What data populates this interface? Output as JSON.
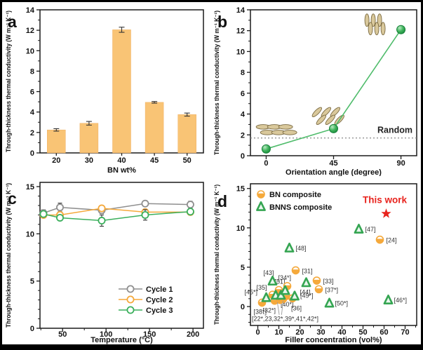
{
  "figure": {
    "background": "#ffffff",
    "border_color": "#000000",
    "axis_color": "#1a1a1a",
    "text_color": "#111111"
  },
  "chart_data": [
    {
      "id": "a",
      "panel_label": "a",
      "type": "bar",
      "xlabel": "BN wt%",
      "ylabel": "Through-thickness thermal conductivity (W m⁻¹ K⁻¹)",
      "categories": [
        "20",
        "30",
        "40",
        "45",
        "50"
      ],
      "values": [
        2.25,
        2.9,
        12.05,
        4.95,
        3.75
      ],
      "errors": [
        0.12,
        0.18,
        0.25,
        0.08,
        0.15
      ],
      "ylim": [
        0,
        14
      ],
      "yticks": [
        0,
        2,
        4,
        6,
        8,
        10,
        12,
        14
      ],
      "y_minor_step": 1,
      "bar_color": "#F9C475",
      "bar_edge": "#EFAF62",
      "error_color": "#333333"
    },
    {
      "id": "b",
      "panel_label": "b",
      "type": "line",
      "xlabel": "Orientation angle (degree)",
      "ylabel": "Through-thickness thermal conductivity (W m⁻¹ K⁻¹)",
      "x": [
        0,
        45,
        90
      ],
      "y": [
        0.65,
        2.6,
        12.1
      ],
      "errors": [
        0.12,
        0.2,
        0.3
      ],
      "xlim": [
        -10.5,
        100.5
      ],
      "xticks": [
        0,
        45,
        90
      ],
      "ylim": [
        0,
        14
      ],
      "yticks": [
        0,
        2,
        4,
        6,
        8,
        10,
        12,
        14
      ],
      "y_minor_step": 1,
      "line_color": "#4FBC6B",
      "marker_edge": "#17803A",
      "ref_line": {
        "y": 1.7,
        "label": "Random",
        "color": "#888888",
        "label_color": "#222222"
      },
      "platelets": [
        {
          "x": 5.5,
          "y": 2.5,
          "angle": 0
        },
        {
          "x": 40,
          "y": 3.85,
          "angle": 45
        },
        {
          "x": 71.5,
          "y": 12.6,
          "angle": 90
        }
      ],
      "platelet_fill": "#D9C89B",
      "platelet_stroke": "#7A6A42"
    },
    {
      "id": "c",
      "panel_label": "c",
      "type": "multiline",
      "xlabel": "Temperature (°C)",
      "ylabel": "Through-thickness thermal conductivity (W m⁻¹ K⁻¹)",
      "x": [
        28,
        47,
        95,
        145,
        197
      ],
      "series": [
        {
          "name": "Cycle 1",
          "color": "#8F8F8F",
          "values": [
            12.2,
            12.8,
            12.5,
            13.2,
            13.1
          ],
          "errors": [
            0.35,
            0.45,
            0.35,
            0.3,
            0.35
          ]
        },
        {
          "name": "Cycle 2",
          "color": "#F5A93B",
          "values": [
            12.0,
            12.0,
            12.7,
            12.3,
            12.3
          ],
          "errors": [
            0.25,
            0.2,
            0.2,
            0.3,
            0.25
          ]
        },
        {
          "name": "Cycle 3",
          "color": "#3BAF5C",
          "values": [
            12.1,
            11.7,
            11.4,
            12.0,
            12.35
          ],
          "errors": [
            0.3,
            0.3,
            0.6,
            0.55,
            0.3
          ]
        }
      ],
      "xlim": [
        24,
        212
      ],
      "xticks": [
        50,
        100,
        150,
        200
      ],
      "x_minor_step": 25,
      "ylim": [
        0,
        15.45
      ],
      "yticks": [
        0,
        5,
        10,
        15
      ],
      "y_minor_step": 1,
      "error_color": "#333333",
      "legend_labels": [
        "Cycle 1",
        "Cycle 2",
        "Cycle 3"
      ]
    },
    {
      "id": "d",
      "panel_label": "d",
      "type": "scatter",
      "xlabel": "Filler concentration (vol%)",
      "ylabel": "Through-thickness thermal conductivity (W m⁻¹ K⁻¹)",
      "xlim": [
        -3.5,
        75.5
      ],
      "xticks": [
        0,
        10,
        20,
        30,
        40,
        50,
        60,
        70
      ],
      "x_minor_step": 5,
      "ylim": [
        -2.4,
        15.6
      ],
      "yticks": [
        0,
        5,
        10,
        15
      ],
      "y_minor_step": 1,
      "ref_label_color": "#333333",
      "series": [
        {
          "name": "BN composite",
          "marker": "halfcircle",
          "color": "#F5A93B",
          "points": [
            {
              "x": 2,
              "y": 0.5,
              "ref": "[38*]",
              "dx": -12,
              "dy": 16
            },
            {
              "x": 7,
              "y": 1.5,
              "ref": "[35]",
              "dx": -23,
              "dy": -7
            },
            {
              "x": 10,
              "y": 2.1,
              "ref": "[51]",
              "dx": -6,
              "dy": -9
            },
            {
              "x": 8,
              "y": 0.75,
              "ref": "[32*]",
              "dx": -17,
              "dy": 17
            },
            {
              "x": 10.5,
              "y": 0.85
            },
            {
              "x": 12,
              "y": 0.95
            },
            {
              "x": 13.5,
              "y": 1.35,
              "ref": "[40*]",
              "dx": -8,
              "dy": 15
            },
            {
              "x": 16.5,
              "y": 1.05,
              "ref": "[36]",
              "dx": -2,
              "dy": 17
            },
            {
              "x": 14,
              "y": 2.6,
              "ref": "[34*]",
              "dx": -13,
              "dy": -9
            },
            {
              "x": 18,
              "y": 4.6,
              "ref": "[31]",
              "dx": 9,
              "dy": 4
            },
            {
              "x": 28,
              "y": 3.3,
              "ref": "[33]",
              "dx": 9,
              "dy": 4
            },
            {
              "x": 29,
              "y": 2.2,
              "ref": "[37*]",
              "dx": 9,
              "dy": 4
            },
            {
              "x": 58,
              "y": 8.5,
              "ref": "[24]",
              "dx": 9,
              "dy": 4
            }
          ]
        },
        {
          "name": "BNNS composite",
          "marker": "triangle",
          "color": "#35A552",
          "fill": "#EAF6EE",
          "points": [
            {
              "x": 4,
              "y": 1.1,
              "ref": "[45*]",
              "dx": -31,
              "dy": -5
            },
            {
              "x": 7,
              "y": 3.2,
              "ref": "[43]",
              "dx": -13,
              "dy": -9
            },
            {
              "x": 8.5,
              "y": 1.4
            },
            {
              "x": 11,
              "y": 1.4
            },
            {
              "x": 13,
              "y": 2.0
            },
            {
              "x": 17.5,
              "y": 1.3,
              "ref": "[49*]",
              "dx": 8,
              "dy": 2
            },
            {
              "x": 23,
              "y": 3.0,
              "ref": "[44]",
              "dx": -9,
              "dy": 16
            },
            {
              "x": 15,
              "y": 7.4,
              "ref": "[48]",
              "dx": 9,
              "dy": 3
            },
            {
              "x": 48,
              "y": 9.8,
              "ref": "[47]",
              "dx": 9,
              "dy": 3
            },
            {
              "x": 34,
              "y": 0.4,
              "ref": "[50*]",
              "dx": 8,
              "dy": 3
            },
            {
              "x": 62,
              "y": 0.8,
              "ref": "[46*]",
              "dx": 8,
              "dy": 3
            }
          ]
        }
      ],
      "highlight": {
        "x": 61,
        "y": 11.8,
        "label": "This work",
        "color": "#E8231D"
      },
      "cluster_note": {
        "text": "[22*,23,32*,39*,41*,42*]",
        "x": 13,
        "y": -1.55,
        "leaders": [
          [
            10.2,
            -1.05,
            9.3,
            0.55
          ],
          [
            11.3,
            -1.05,
            12.0,
            0.72
          ]
        ],
        "leader_color": "#999999"
      }
    }
  ]
}
